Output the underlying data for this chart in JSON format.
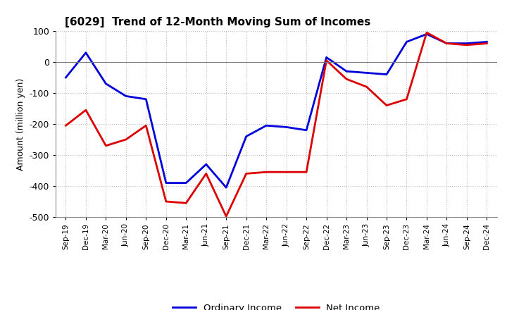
{
  "title": "[6029]  Trend of 12-Month Moving Sum of Incomes",
  "ylabel": "Amount (million yen)",
  "xlabels": [
    "Sep-19",
    "Dec-19",
    "Mar-20",
    "Jun-20",
    "Sep-20",
    "Dec-20",
    "Mar-21",
    "Jun-21",
    "Sep-21",
    "Dec-21",
    "Mar-22",
    "Jun-22",
    "Sep-22",
    "Dec-22",
    "Mar-23",
    "Jun-23",
    "Sep-23",
    "Dec-23",
    "Mar-24",
    "Jun-24",
    "Sep-24",
    "Dec-24"
  ],
  "ordinary_income": [
    -50,
    30,
    -70,
    -110,
    -120,
    -390,
    -390,
    -330,
    -405,
    -240,
    -205,
    -210,
    -220,
    15,
    -30,
    -35,
    -40,
    65,
    90,
    60,
    60,
    65
  ],
  "net_income": [
    -205,
    -155,
    -270,
    -250,
    -205,
    -450,
    -455,
    -360,
    -498,
    -360,
    -355,
    -355,
    -355,
    5,
    -55,
    -80,
    -140,
    -120,
    95,
    60,
    55,
    60
  ],
  "ordinary_color": "#0000DD",
  "net_color": "#DD0000",
  "ylim": [
    -500,
    100
  ],
  "yticks": [
    -500,
    -400,
    -300,
    -200,
    -100,
    0,
    100
  ],
  "bg_color": "#FFFFFF",
  "grid_color": "#AAAAAA",
  "legend_ordinary": "Ordinary Income",
  "legend_net": "Net Income"
}
